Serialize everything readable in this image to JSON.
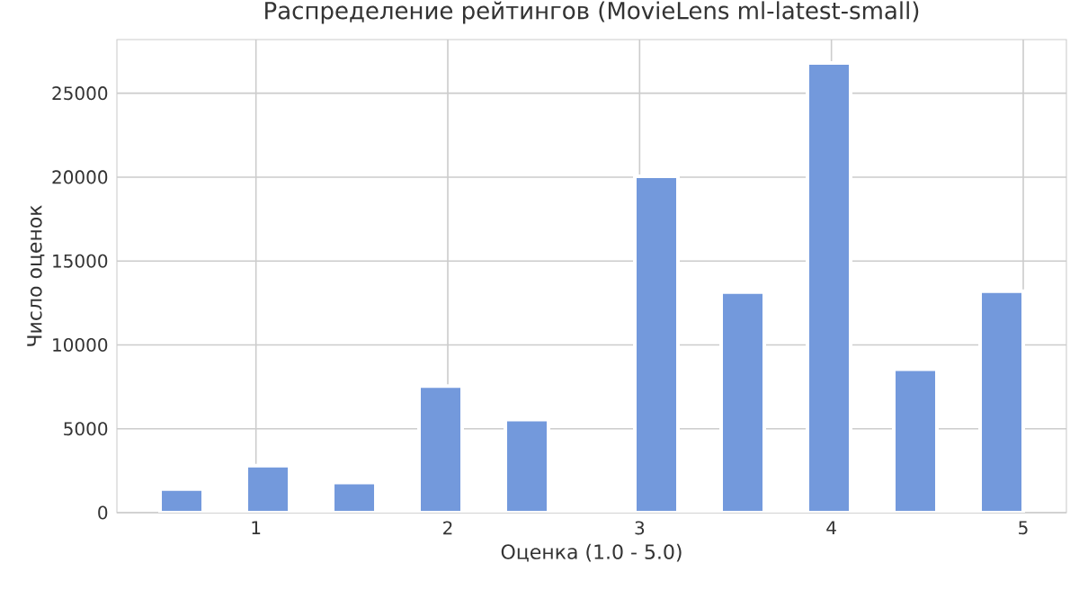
{
  "chart_data": {
    "type": "histogram",
    "title": "Распределение рейтингов (MovieLens ml-latest-small)",
    "xlabel": "Оценка (1.0 - 5.0)",
    "ylabel": "Число оценок",
    "bins": [
      0.5,
      0.725,
      0.95,
      1.175,
      1.4,
      1.625,
      1.85,
      2.075,
      2.3,
      2.525,
      2.75,
      2.975,
      3.2,
      3.425,
      3.65,
      3.875,
      4.1,
      4.325,
      4.55,
      4.775,
      5.0
    ],
    "values": [
      1400,
      0,
      2800,
      0,
      1800,
      0,
      7550,
      0,
      5550,
      0,
      0,
      20050,
      0,
      13150,
      0,
      26800,
      0,
      8550,
      0,
      13200
    ],
    "color": "#7399dc",
    "xlim": [
      0.275,
      5.225
    ],
    "ylim": [
      0,
      28200
    ],
    "xticks": [
      1,
      2,
      3,
      4,
      5
    ],
    "yticks": [
      0,
      5000,
      10000,
      15000,
      20000,
      25000
    ],
    "grid": true
  }
}
